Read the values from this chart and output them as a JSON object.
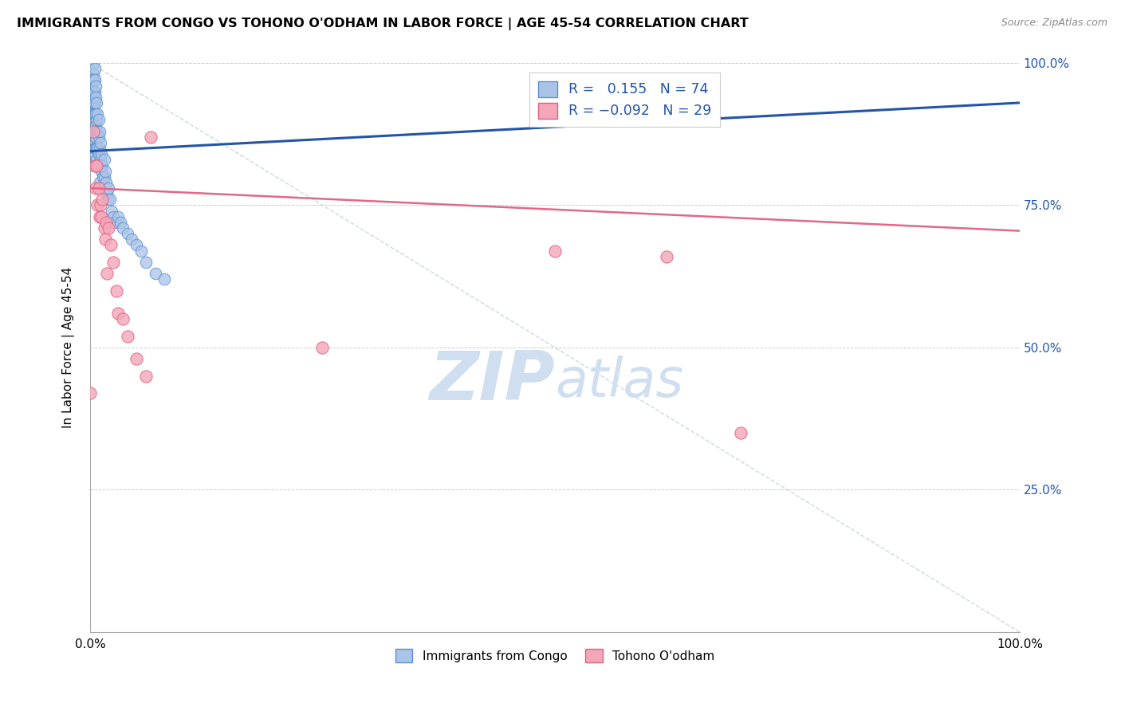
{
  "title": "IMMIGRANTS FROM CONGO VS TOHONO O'ODHAM IN LABOR FORCE | AGE 45-54 CORRELATION CHART",
  "source": "Source: ZipAtlas.com",
  "ylabel": "In Labor Force | Age 45-54",
  "xlim": [
    0.0,
    1.0
  ],
  "ylim": [
    0.0,
    1.0
  ],
  "xticks": [
    0.0,
    0.25,
    0.5,
    0.75,
    1.0
  ],
  "yticks": [
    0.0,
    0.25,
    0.5,
    0.75,
    1.0
  ],
  "congo_color": "#aac4e8",
  "congo_edge_color": "#5b8fce",
  "tohono_color": "#f4a7b9",
  "tohono_edge_color": "#e06080",
  "congo_trend_color": "#2255aa",
  "tohono_trend_color": "#e06888",
  "diag_line_color": "#b8c8d8",
  "grid_color": "#cccccc",
  "watermark_zip": "ZIP",
  "watermark_atlas": "atlas",
  "watermark_color": "#d0dff0",
  "legend_r_color": "#2255aa",
  "congo_x": [
    0.001,
    0.001,
    0.002,
    0.002,
    0.003,
    0.003,
    0.003,
    0.003,
    0.003,
    0.003,
    0.003,
    0.004,
    0.004,
    0.004,
    0.004,
    0.004,
    0.005,
    0.005,
    0.005,
    0.005,
    0.005,
    0.005,
    0.005,
    0.005,
    0.006,
    0.006,
    0.006,
    0.006,
    0.006,
    0.006,
    0.006,
    0.007,
    0.007,
    0.007,
    0.007,
    0.007,
    0.008,
    0.008,
    0.008,
    0.008,
    0.009,
    0.009,
    0.009,
    0.01,
    0.01,
    0.01,
    0.01,
    0.011,
    0.011,
    0.012,
    0.012,
    0.013,
    0.014,
    0.015,
    0.015,
    0.016,
    0.017,
    0.018,
    0.019,
    0.02,
    0.021,
    0.023,
    0.025,
    0.027,
    0.03,
    0.033,
    0.035,
    0.04,
    0.045,
    0.05,
    0.055,
    0.06,
    0.07,
    0.08
  ],
  "congo_y": [
    0.95,
    0.92,
    0.96,
    0.93,
    1.0,
    0.98,
    0.97,
    0.95,
    0.93,
    0.91,
    0.88,
    0.97,
    0.94,
    0.91,
    0.88,
    0.85,
    0.99,
    0.97,
    0.95,
    0.93,
    0.91,
    0.89,
    0.87,
    0.85,
    0.96,
    0.94,
    0.91,
    0.89,
    0.87,
    0.85,
    0.83,
    0.93,
    0.9,
    0.88,
    0.85,
    0.83,
    0.91,
    0.88,
    0.85,
    0.82,
    0.9,
    0.87,
    0.84,
    0.88,
    0.85,
    0.82,
    0.79,
    0.86,
    0.83,
    0.84,
    0.81,
    0.82,
    0.8,
    0.83,
    0.8,
    0.81,
    0.79,
    0.77,
    0.76,
    0.78,
    0.76,
    0.74,
    0.73,
    0.72,
    0.73,
    0.72,
    0.71,
    0.7,
    0.69,
    0.68,
    0.67,
    0.65,
    0.63,
    0.62
  ],
  "tohono_x": [
    0.0,
    0.003,
    0.005,
    0.006,
    0.007,
    0.008,
    0.009,
    0.01,
    0.011,
    0.012,
    0.013,
    0.015,
    0.016,
    0.017,
    0.018,
    0.02,
    0.022,
    0.025,
    0.028,
    0.03,
    0.035,
    0.04,
    0.05,
    0.06,
    0.065,
    0.25,
    0.5,
    0.62,
    0.7
  ],
  "tohono_y": [
    0.42,
    0.88,
    0.82,
    0.78,
    0.82,
    0.75,
    0.78,
    0.73,
    0.75,
    0.73,
    0.76,
    0.71,
    0.69,
    0.72,
    0.63,
    0.71,
    0.68,
    0.65,
    0.6,
    0.56,
    0.55,
    0.52,
    0.48,
    0.45,
    0.87,
    0.5,
    0.67,
    0.66,
    0.35
  ],
  "congo_trend_x0": 0.0,
  "congo_trend_x1": 1.0,
  "congo_trend_y0": 0.845,
  "congo_trend_y1": 0.93,
  "tohono_trend_x0": 0.0,
  "tohono_trend_x1": 1.0,
  "tohono_trend_y0": 0.78,
  "tohono_trend_y1": 0.705
}
